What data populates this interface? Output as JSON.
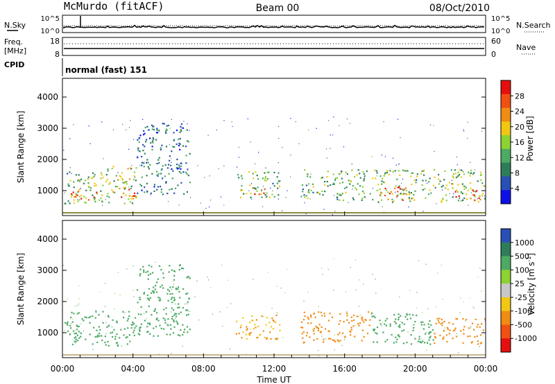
{
  "header": {
    "station": "McMurdo (fitACF)",
    "beam": "Beam 00",
    "date": "08/Oct/2010"
  },
  "top_panels": {
    "nsky": {
      "label": "N.Sky",
      "tick_top": "10^5",
      "tick_bottom": "10^0"
    },
    "nsearch": {
      "label": "N.Search",
      "tick_top": "10^5",
      "tick_bottom": "10^0"
    },
    "freq": {
      "label_line1": "Freq.",
      "label_line2": "[MHz]",
      "tick_top": "18",
      "tick_bottom": "8"
    },
    "nave": {
      "label": "Nave",
      "tick_top": "60",
      "tick_bottom": "0"
    },
    "cpid": {
      "label": "CPID",
      "text": "normal (fast) 151"
    }
  },
  "x_axis": {
    "label": "Time UT",
    "ticks": [
      "00:00",
      "04:00",
      "08:00",
      "12:00",
      "16:00",
      "20:00",
      "00:00"
    ]
  },
  "colors": {
    "power_scale": [
      "#1010e6",
      "#2850b4",
      "#2e7d5a",
      "#4caa64",
      "#8cd232",
      "#f0c814",
      "#f08c14",
      "#f05014",
      "#e60f0f"
    ],
    "velocity_scale": [
      "#e60f0f",
      "#f05014",
      "#f08c14",
      "#f0c814",
      "#c8c8c8",
      "#8cd232",
      "#4caa64",
      "#2e7d5a",
      "#2850b4"
    ]
  },
  "chart_data": [
    {
      "type": "heatmap",
      "title": "",
      "xlabel": "",
      "ylabel": "Slant Range [km]",
      "xlim": [
        0,
        24
      ],
      "ylim": [
        200,
        4600
      ],
      "yticks": [
        "1000",
        "2000",
        "3000",
        "4000"
      ],
      "colorbar": {
        "label": "Power [dB]",
        "ticks": [
          "4",
          "8",
          "12",
          "16",
          "20",
          "24",
          "28"
        ],
        "range": [
          0,
          32
        ]
      },
      "regions": [
        {
          "t0": 0.1,
          "t1": 2.4,
          "r0": 600,
          "r1": 1700,
          "value": 14
        },
        {
          "t0": 0.4,
          "t1": 2.0,
          "r0": 650,
          "r1": 1050,
          "value": 24
        },
        {
          "t0": 2.4,
          "t1": 4.2,
          "r0": 600,
          "r1": 1800,
          "value": 16
        },
        {
          "t0": 3.2,
          "t1": 4.2,
          "r0": 650,
          "r1": 1100,
          "value": 28
        },
        {
          "t0": 4.2,
          "t1": 7.2,
          "r0": 900,
          "r1": 3200,
          "value": 8
        },
        {
          "t0": 9.8,
          "t1": 12.3,
          "r0": 800,
          "r1": 1650,
          "value": 14
        },
        {
          "t0": 10.5,
          "t1": 11.5,
          "r0": 900,
          "r1": 1200,
          "value": 22
        },
        {
          "t0": 13.5,
          "t1": 17.5,
          "r0": 700,
          "r1": 1700,
          "value": 13
        },
        {
          "t0": 17.5,
          "t1": 24.0,
          "r0": 650,
          "r1": 1700,
          "value": 14
        },
        {
          "t0": 17.8,
          "t1": 19.5,
          "r0": 650,
          "r1": 1150,
          "value": 28
        },
        {
          "t0": 22.2,
          "t1": 23.8,
          "r0": 700,
          "r1": 1100,
          "value": 24
        }
      ]
    },
    {
      "type": "heatmap",
      "title": "",
      "xlabel": "Time UT",
      "ylabel": "Slant Range [km]",
      "xlim": [
        0,
        24
      ],
      "ylim": [
        200,
        4600
      ],
      "yticks": [
        "1000",
        "2000",
        "3000",
        "4000"
      ],
      "colorbar": {
        "label": "Velocity [m s^-1]",
        "ticks": [
          "-1000",
          "-500",
          "-100",
          "-25",
          "25",
          "100",
          "500",
          "1000"
        ]
      },
      "regions": [
        {
          "t0": 0.1,
          "t1": 4.2,
          "r0": 600,
          "r1": 1700,
          "value": 300
        },
        {
          "t0": 4.2,
          "t1": 7.2,
          "r0": 900,
          "r1": 3200,
          "value": 150
        },
        {
          "t0": 9.8,
          "t1": 12.3,
          "r0": 800,
          "r1": 1650,
          "value": -100
        },
        {
          "t0": 13.5,
          "t1": 17.5,
          "r0": 700,
          "r1": 1700,
          "value": -250
        },
        {
          "t0": 17.5,
          "t1": 21.0,
          "r0": 650,
          "r1": 1700,
          "value": 200
        },
        {
          "t0": 21.0,
          "t1": 24.0,
          "r0": 650,
          "r1": 1500,
          "value": -300
        }
      ]
    }
  ]
}
